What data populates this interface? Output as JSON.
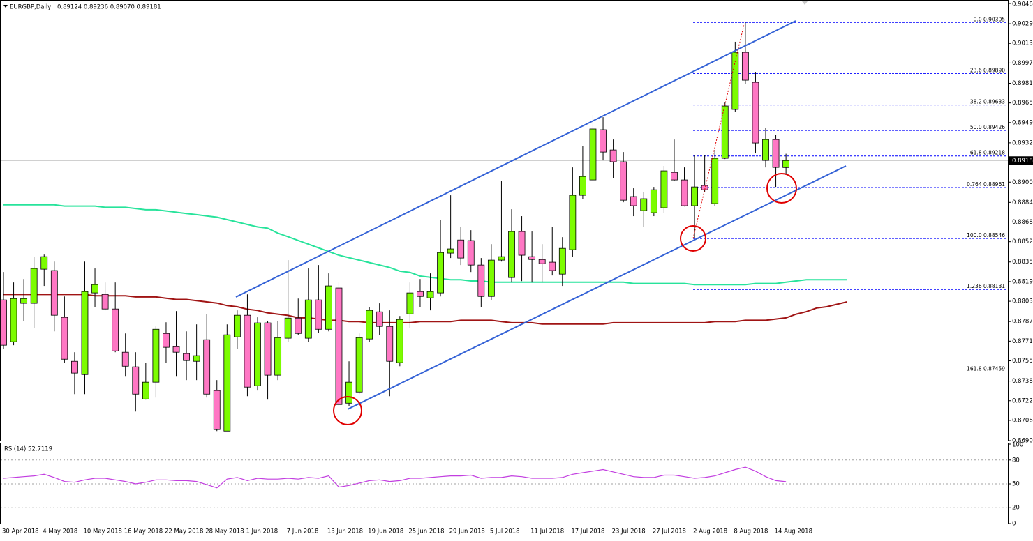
{
  "chart_data": [
    {
      "type": "candlestick",
      "title": "EURGBP,Daily",
      "header_values": "0.89124 0.89236 0.89070 0.89181",
      "categories": [
        "30 Apr 2018",
        null,
        null,
        null,
        "4 May 2018",
        null,
        null,
        null,
        "10 May 2018",
        null,
        null,
        null,
        "16 May 2018",
        null,
        null,
        null,
        "22 May 2018",
        null,
        null,
        null,
        "28 May 2018",
        null,
        null,
        null,
        "1 Jun 2018",
        null,
        null,
        null,
        "7 Jun 2018",
        null,
        null,
        null,
        "13 Jun 2018",
        null,
        null,
        null,
        "19 Jun 2018",
        null,
        null,
        null,
        "25 Jun 2018",
        null,
        null,
        null,
        "29 Jun 2018",
        null,
        null,
        null,
        "5 Jul 2018",
        null,
        null,
        null,
        "11 Jul 2018",
        null,
        null,
        null,
        "17 Jul 2018",
        null,
        null,
        null,
        "23 Jul 2018",
        null,
        null,
        null,
        "27 Jul 2018",
        null,
        null,
        null,
        "2 Aug 2018",
        null,
        null,
        null,
        "8 Aug 2018",
        null,
        null,
        null,
        "14 Aug 2018",
        null,
        null,
        null,
        null,
        null,
        null,
        null
      ],
      "open": [
        0.88046,
        0.87705,
        0.88018,
        0.88018,
        0.88296,
        0.88285,
        0.87904,
        0.87546,
        0.87438,
        0.88103,
        0.88091,
        0.87972,
        0.8762,
        0.87501,
        0.87239,
        0.87376,
        0.87773,
        0.87665,
        0.87609,
        0.87546,
        0.87722,
        0.87308,
        0.86978,
        0.87745,
        0.87921,
        0.87347,
        0.87859,
        0.87433,
        0.87734,
        0.87898,
        0.87734,
        0.88046,
        0.87807,
        0.88143,
        0.87205,
        0.87296,
        0.87728,
        0.87949,
        0.8783,
        0.87535,
        0.87932,
        0.88114,
        0.88063,
        0.88103,
        0.88427,
        0.88534,
        0.88529,
        0.8833,
        0.88074,
        0.8837,
        0.88228,
        0.88603,
        0.88398,
        0.88375,
        0.88353,
        0.88256,
        0.88455,
        0.88898,
        0.89023,
        0.89432,
        0.89267,
        0.89171,
        0.88887,
        0.88773,
        0.88756,
        0.88796,
        0.89085,
        0.89023,
        0.88813,
        0.88978,
        0.8883,
        0.89199,
        0.89597,
        0.90062,
        0.89818,
        0.89182,
        0.89352,
        0.89124,
        null,
        null,
        null,
        null,
        null,
        null
      ],
      "high": [
        0.88273,
        0.88188,
        0.88216,
        0.88398,
        0.88415,
        0.88358,
        0.88074,
        0.8762,
        0.88358,
        0.88302,
        0.88188,
        0.88188,
        0.87773,
        0.8762,
        0.87535,
        0.8783,
        0.87864,
        0.87955,
        0.8779,
        0.87847,
        0.87932,
        0.87393,
        0.87847,
        0.87961,
        0.88091,
        0.87904,
        0.87876,
        0.87876,
        0.8837,
        0.88057,
        0.88302,
        0.8833,
        0.88262,
        0.88194,
        0.87546,
        0.87773,
        0.87989,
        0.88018,
        0.87961,
        0.87915,
        0.88188,
        0.88216,
        0.88262,
        0.88699,
        0.88898,
        0.88642,
        0.88614,
        0.88387,
        0.885,
        0.89012,
        0.88784,
        0.88728,
        0.88603,
        0.885,
        0.88642,
        0.88557,
        0.89125,
        0.89296,
        0.89551,
        0.89534,
        0.89352,
        0.8925,
        0.88955,
        0.88926,
        0.88966,
        0.89137,
        0.89352,
        0.89125,
        0.89227,
        0.89227,
        0.89267,
        0.89653,
        0.90148,
        0.90305,
        0.89903,
        0.89449,
        0.89392,
        0.89236,
        null,
        null,
        null,
        null,
        null,
        null
      ],
      "low": [
        0.87648,
        0.87677,
        0.87876,
        0.87819,
        0.8816,
        0.8779,
        0.87535,
        0.87279,
        0.87279,
        0.87989,
        0.87961,
        0.8762,
        0.87421,
        0.87137,
        0.87234,
        0.87251,
        0.87535,
        0.87421,
        0.87393,
        0.87393,
        0.87251,
        0.86978,
        0.86978,
        0.87648,
        0.87262,
        0.87308,
        0.87234,
        0.87393,
        0.87705,
        0.87762,
        0.87705,
        0.87779,
        0.8779,
        0.87183,
        0.87183,
        0.87279,
        0.87705,
        0.87762,
        0.87262,
        0.87506,
        0.87819,
        0.87989,
        0.87961,
        0.88074,
        0.88387,
        0.8833,
        0.88273,
        0.87989,
        0.88046,
        0.88358,
        0.88188,
        0.88199,
        0.88188,
        0.88188,
        0.88245,
        0.8816,
        0.88398,
        0.8887,
        0.89012,
        0.89182,
        0.8904,
        0.88841,
        0.88728,
        0.88642,
        0.88728,
        0.88756,
        0.89012,
        0.88807,
        0.88546,
        0.88926,
        0.88813,
        0.89193,
        0.8958,
        0.89807,
        0.89239,
        0.89125,
        0.88966,
        0.8907,
        null,
        null,
        null,
        null,
        null,
        null
      ],
      "close": [
        0.87677,
        0.88057,
        0.88057,
        0.88302,
        0.88398,
        0.87921,
        0.87563,
        0.8745,
        0.88114,
        0.88171,
        0.87972,
        0.87631,
        0.87506,
        0.87279,
        0.87376,
        0.87807,
        0.8766,
        0.8762,
        0.87552,
        0.87592,
        0.87279,
        0.8699,
        0.87762,
        0.87921,
        0.87336,
        0.87859,
        0.87433,
        0.87739,
        0.87898,
        0.87773,
        0.88046,
        0.87807,
        0.8816,
        0.87194,
        0.87376,
        0.87739,
        0.87961,
        0.8783,
        0.87546,
        0.87887,
        0.88103,
        0.88074,
        0.88114,
        0.88432,
        0.88461,
        0.88387,
        0.8833,
        0.88074,
        0.8837,
        0.88398,
        0.88603,
        0.8841,
        0.88375,
        0.88341,
        0.88285,
        0.88466,
        0.88898,
        0.89051,
        0.89438,
        0.8925,
        0.89171,
        0.88858,
        0.88813,
        0.8887,
        0.88943,
        0.89097,
        0.89023,
        0.88813,
        0.88966,
        0.88943,
        0.89199,
        0.89625,
        0.90062,
        0.89835,
        0.89324,
        0.89352,
        0.89125,
        0.89181,
        null,
        null,
        null,
        null,
        null,
        null
      ],
      "up_color": "#7cfc00",
      "down_color": "#ff77c4",
      "moving_averages": [
        {
          "color": "#27e39b",
          "values": [
            0.8882,
            0.8882,
            0.8882,
            0.8882,
            0.8882,
            0.8882,
            0.8881,
            0.8881,
            0.8881,
            0.8881,
            0.888,
            0.888,
            0.888,
            0.8879,
            0.8878,
            0.8878,
            0.8877,
            0.8876,
            0.8875,
            0.8874,
            0.8873,
            0.8872,
            0.887,
            0.8868,
            0.8866,
            0.8864,
            0.8863,
            0.8859,
            0.8856,
            0.8853,
            0.885,
            0.8847,
            0.8844,
            0.8841,
            0.8839,
            0.8837,
            0.8835,
            0.8833,
            0.8831,
            0.8828,
            0.8827,
            0.8824,
            0.8823,
            0.8822,
            0.8821,
            0.8821,
            0.882,
            0.882,
            0.8819,
            0.8819,
            0.8819,
            0.8819,
            0.8819,
            0.8819,
            0.8819,
            0.8819,
            0.8819,
            0.8819,
            0.8819,
            0.8819,
            0.8819,
            0.8819,
            0.8818,
            0.8818,
            0.8818,
            0.8818,
            0.8818,
            0.8818,
            0.8817,
            0.8817,
            0.8817,
            0.8817,
            0.8817,
            0.8817,
            0.8818,
            0.8818,
            0.8818,
            0.8819,
            0.882,
            0.8821,
            0.8821,
            0.8821,
            0.8821,
            0.8821
          ]
        },
        {
          "color": "#a01414",
          "values": [
            0.8809,
            0.8809,
            0.8809,
            0.8809,
            0.8809,
            0.8809,
            0.8809,
            0.8809,
            0.8809,
            0.8808,
            0.8808,
            0.8808,
            0.8808,
            0.8807,
            0.8807,
            0.8807,
            0.8806,
            0.8805,
            0.8805,
            0.8804,
            0.8803,
            0.8802,
            0.88,
            0.8799,
            0.8797,
            0.8796,
            0.8794,
            0.8793,
            0.8792,
            0.879,
            0.879,
            0.8789,
            0.8788,
            0.8788,
            0.8787,
            0.8787,
            0.8786,
            0.8786,
            0.8786,
            0.8786,
            0.8786,
            0.8787,
            0.8787,
            0.8787,
            0.8787,
            0.8788,
            0.8788,
            0.8788,
            0.8788,
            0.8787,
            0.8786,
            0.8786,
            0.8786,
            0.8785,
            0.8785,
            0.8785,
            0.8785,
            0.8785,
            0.8785,
            0.8785,
            0.8786,
            0.8786,
            0.8786,
            0.8786,
            0.8786,
            0.8786,
            0.8786,
            0.8786,
            0.8786,
            0.8786,
            0.8787,
            0.8787,
            0.8787,
            0.8788,
            0.8788,
            0.8788,
            0.8789,
            0.879,
            0.8793,
            0.8795,
            0.8798,
            0.8799,
            0.8801,
            0.8803
          ]
        }
      ],
      "fib_color": "#0000ff",
      "fib_levels": [
        {
          "text": "0.0 0.90305",
          "value": 0.90305
        },
        {
          "text": "23.6 0.89890",
          "value": 0.8989
        },
        {
          "text": "38.2 0.89633",
          "value": 0.89633
        },
        {
          "text": "50.0 0.89426",
          "value": 0.89426
        },
        {
          "text": "61.8 0.89218",
          "value": 0.89218
        },
        {
          "text": "0.764 0.88961",
          "value": 0.88961
        },
        {
          "text": "100.0 0.88546",
          "value": 0.88546
        },
        {
          "text": "1.236 0.88131",
          "value": 0.88131
        },
        {
          "text": "161.8 0.87459",
          "value": 0.87459
        }
      ],
      "last_price": 0.89181,
      "ylim": [
        0.869,
        0.9046
      ],
      "yticks": [
        {
          "value": 0.9046,
          "label": "0.90460"
        },
        0.90295,
        0.90135,
        0.89975,
        {
          "value": 0.8981,
          "label": "0.89810"
        },
        {
          "value": 0.8965,
          "label": "0.89650"
        },
        {
          "value": 0.8949,
          "label": "0.89490"
        },
        0.89325,
        0.89005,
        {
          "value": 0.8884,
          "label": "0.88840"
        },
        {
          "value": 0.8868,
          "label": "0.88680"
        },
        {
          "value": 0.8852,
          "label": "0.88520"
        },
        0.88355,
        0.88195,
        0.88035,
        {
          "value": 0.8787,
          "label": "0.87870"
        },
        {
          "value": 0.8771,
          "label": "0.87710"
        },
        {
          "value": 0.8755,
          "label": "0.87550"
        },
        0.87385,
        0.87225,
        0.87065,
        {
          "value": 0.869,
          "label": "0.86900"
        }
      ]
    },
    {
      "type": "line",
      "title": "RSI(14) 52.7119",
      "color": "#c23ee0",
      "values": [
        57,
        58,
        59,
        60,
        62,
        58,
        53,
        52,
        55,
        57,
        57,
        55,
        53,
        50,
        52,
        55,
        55,
        54,
        54,
        53,
        49,
        45,
        56,
        58,
        54,
        57,
        56,
        56,
        57,
        56,
        58,
        57,
        60,
        46,
        48,
        51,
        54,
        55,
        53,
        54,
        57,
        57,
        58,
        59,
        60,
        60,
        61,
        57,
        58,
        58,
        60,
        59,
        57,
        57,
        57,
        58,
        62,
        64,
        66,
        68,
        65,
        62,
        59,
        58,
        58,
        61,
        61,
        59,
        57,
        58,
        60,
        64,
        68,
        71,
        66,
        59,
        54,
        52.7,
        null,
        null,
        null,
        null,
        null,
        null
      ],
      "ylim": [
        0,
        100
      ],
      "yticks": [
        100,
        80,
        50,
        20,
        0
      ]
    }
  ]
}
